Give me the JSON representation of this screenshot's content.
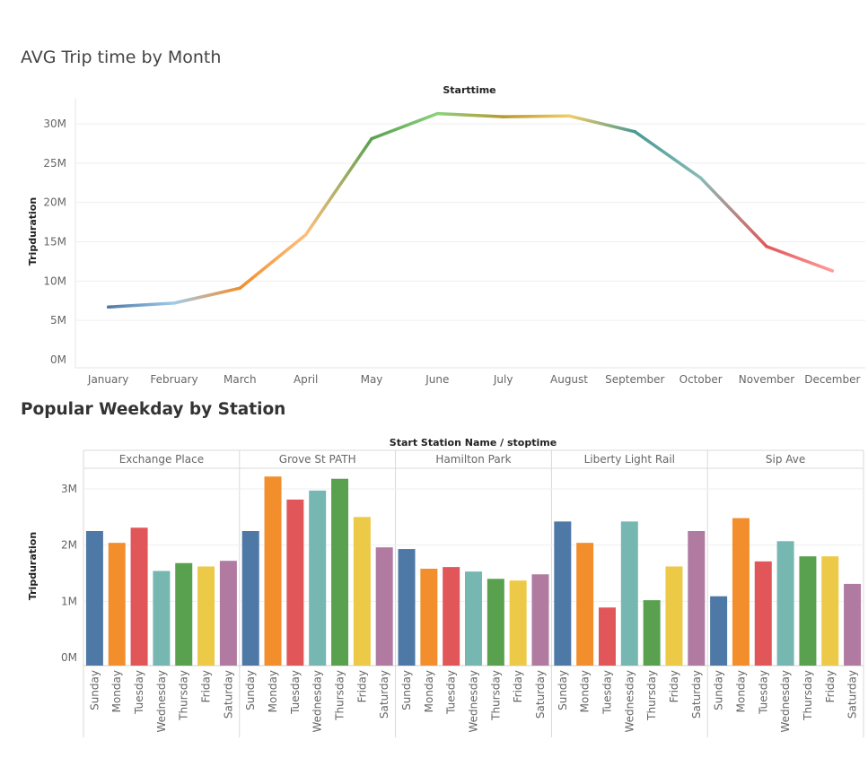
{
  "chart_data": [
    {
      "type": "line",
      "title": "AVG Trip time by Month",
      "header": "Starttime",
      "ylabel": "Tripduration",
      "categories": [
        "January",
        "February",
        "March",
        "April",
        "May",
        "June",
        "July",
        "August",
        "September",
        "October",
        "November",
        "December"
      ],
      "values": [
        6700000,
        7200000,
        9100000,
        15900000,
        28100000,
        31300000,
        30900000,
        31000000,
        29000000,
        23100000,
        14400000,
        11300000
      ],
      "point_colors": [
        "#4e79a7",
        "#a0cbe8",
        "#f28e2b",
        "#ffbe7d",
        "#59a14f",
        "#8cd17d",
        "#b6992d",
        "#f1ce63",
        "#499894",
        "#86bcb6",
        "#e15759",
        "#ff9d9a"
      ],
      "ylim": [
        0,
        32000000
      ],
      "yticks": [
        0,
        5000000,
        10000000,
        15000000,
        20000000,
        25000000,
        30000000
      ],
      "ytick_labels": [
        "0M",
        "5M",
        "10M",
        "15M",
        "20M",
        "25M",
        "30M"
      ],
      "grid": true
    },
    {
      "type": "bar",
      "title": "Popular Weekday by Station",
      "header": "Start Station Name / stoptime",
      "ylabel": "Tripduration",
      "panels": [
        "Exchange Place",
        "Grove St PATH",
        "Hamilton Park",
        "Liberty Light Rail",
        "Sip Ave"
      ],
      "categories": [
        "Sunday",
        "Monday",
        "Tuesday",
        "Wednesday",
        "Thursday",
        "Friday",
        "Saturday"
      ],
      "category_colors": [
        "#4e79a7",
        "#f28e2b",
        "#e15759",
        "#76b7b2",
        "#59a14f",
        "#edc948",
        "#b07aa1"
      ],
      "values": [
        [
          2250000,
          2040000,
          2310000,
          1540000,
          1680000,
          1620000,
          1720000
        ],
        [
          2250000,
          3220000,
          2810000,
          2970000,
          3180000,
          2500000,
          1960000
        ],
        [
          1930000,
          1580000,
          1610000,
          1530000,
          1400000,
          1370000,
          1480000
        ],
        [
          2420000,
          2040000,
          890000,
          2420000,
          1020000,
          1620000,
          2250000
        ],
        [
          1090000,
          2480000,
          1710000,
          2070000,
          1800000,
          1800000,
          1310000
        ]
      ],
      "ylim": [
        0,
        3400000
      ],
      "yticks": [
        0,
        1000000,
        2000000,
        3000000
      ],
      "ytick_labels": [
        "0M",
        "1M",
        "2M",
        "3M"
      ],
      "grid": true
    }
  ]
}
